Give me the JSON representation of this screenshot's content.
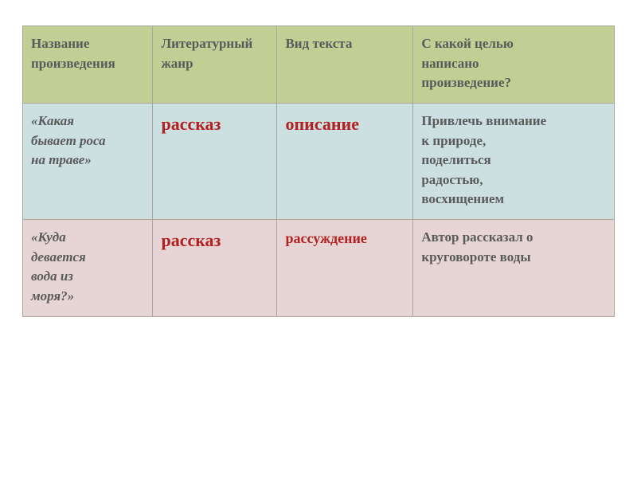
{
  "table": {
    "headers": {
      "col1a": "Название",
      "col1b": "произведения",
      "col2a": "Литературный",
      "col2b": "жанр",
      "col3": "Вид текста",
      "col4a": "С какой целью",
      "col4b": "написано",
      "col4c": "произведение?"
    },
    "row1": {
      "title_a": "«Какая",
      "title_b": "бывает роса",
      "title_c": "на траве»",
      "genre": "рассказ",
      "texttype": "описание",
      "purpose_a": "Привлечь внимание",
      "purpose_b": "к природе,",
      "purpose_c": "поделиться",
      "purpose_d": "радостью,",
      "purpose_e": "восхищением"
    },
    "row2": {
      "title_a": "«Куда",
      "title_b": "девается",
      "title_c": "вода из",
      "title_d": "моря?»",
      "genre": "рассказ",
      "texttype": "рассуждение",
      "purpose_a": "Автор рассказал о",
      "purpose_b": "круговороте воды"
    },
    "colors": {
      "header_bg": "#c1cf95",
      "row1_bg": "#cce0e1",
      "row2_bg": "#e6d5d4",
      "border": "#a7a79a",
      "text": "#5a5a5a",
      "accent": "#b32020"
    }
  }
}
